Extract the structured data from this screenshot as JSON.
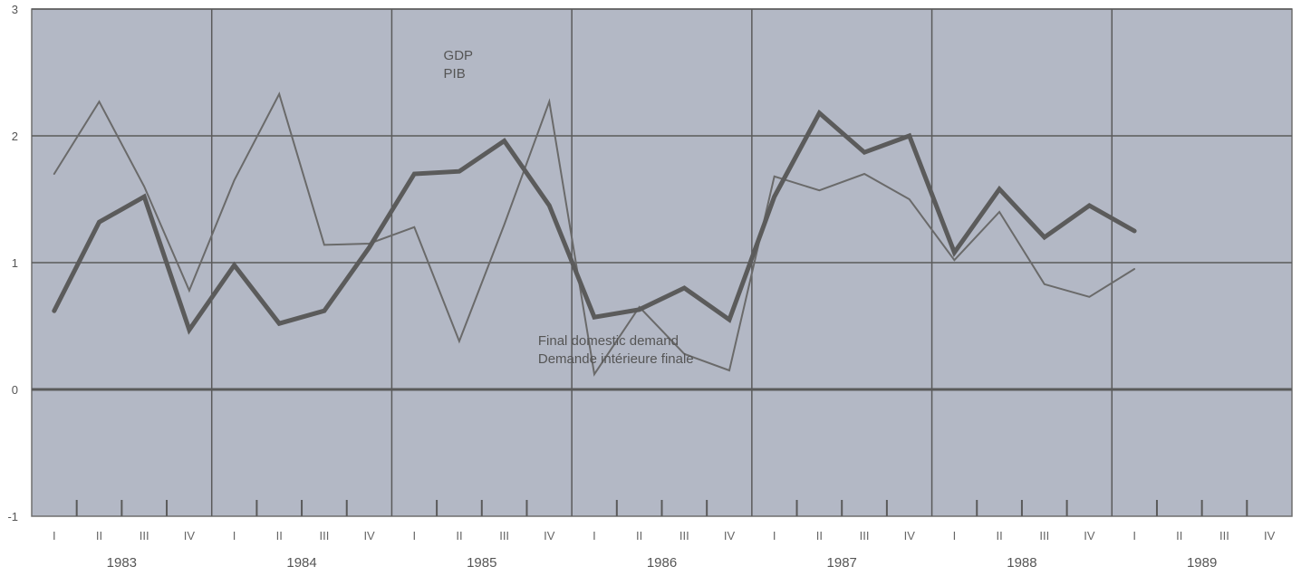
{
  "chart_data": {
    "type": "line",
    "title": "",
    "xlabel": "",
    "ylabel": "",
    "ylim": [
      -1,
      3
    ],
    "y_ticks": [
      "3",
      "2",
      "1",
      "0",
      "-1"
    ],
    "y_tick_values": [
      3,
      2,
      1,
      0,
      -1
    ],
    "years": [
      "1983",
      "1984",
      "1985",
      "1986",
      "1987",
      "1988",
      "1989"
    ],
    "quarters": [
      "I",
      "II",
      "III",
      "IV"
    ],
    "grid": true,
    "colors": {
      "plot_bg": "#b3b8c5",
      "grid": "#5a5a5a",
      "gdp": "#6a6a6a",
      "demand": "#5b5b5b",
      "frame": "#6f6f6f"
    },
    "annotations": [
      {
        "lines": [
          "GDP",
          "PIB"
        ],
        "x_quarter": 8.65,
        "y_value": 2.6
      },
      {
        "lines": [
          "Final domestic demand",
          "Demande intérieure finale"
        ],
        "x_quarter": 10.75,
        "y_value": 0.35
      }
    ],
    "series": [
      {
        "id": "gdp",
        "width": 2,
        "values": [
          1.7,
          2.27,
          1.6,
          0.78,
          1.65,
          2.33,
          1.14,
          1.15,
          1.28,
          0.38,
          1.3,
          2.27,
          0.12,
          0.65,
          0.28,
          0.15,
          1.68,
          1.57,
          1.7,
          1.5,
          1.02,
          1.4,
          0.83,
          0.73,
          0.95
        ]
      },
      {
        "id": "demand",
        "width": 5,
        "values": [
          0.62,
          1.32,
          1.52,
          0.47,
          0.98,
          0.52,
          0.62,
          1.12,
          1.7,
          1.72,
          1.96,
          1.45,
          0.57,
          0.63,
          0.8,
          0.55,
          1.52,
          2.18,
          1.87,
          2.0,
          1.08,
          1.58,
          1.2,
          1.45,
          1.25
        ]
      }
    ]
  }
}
